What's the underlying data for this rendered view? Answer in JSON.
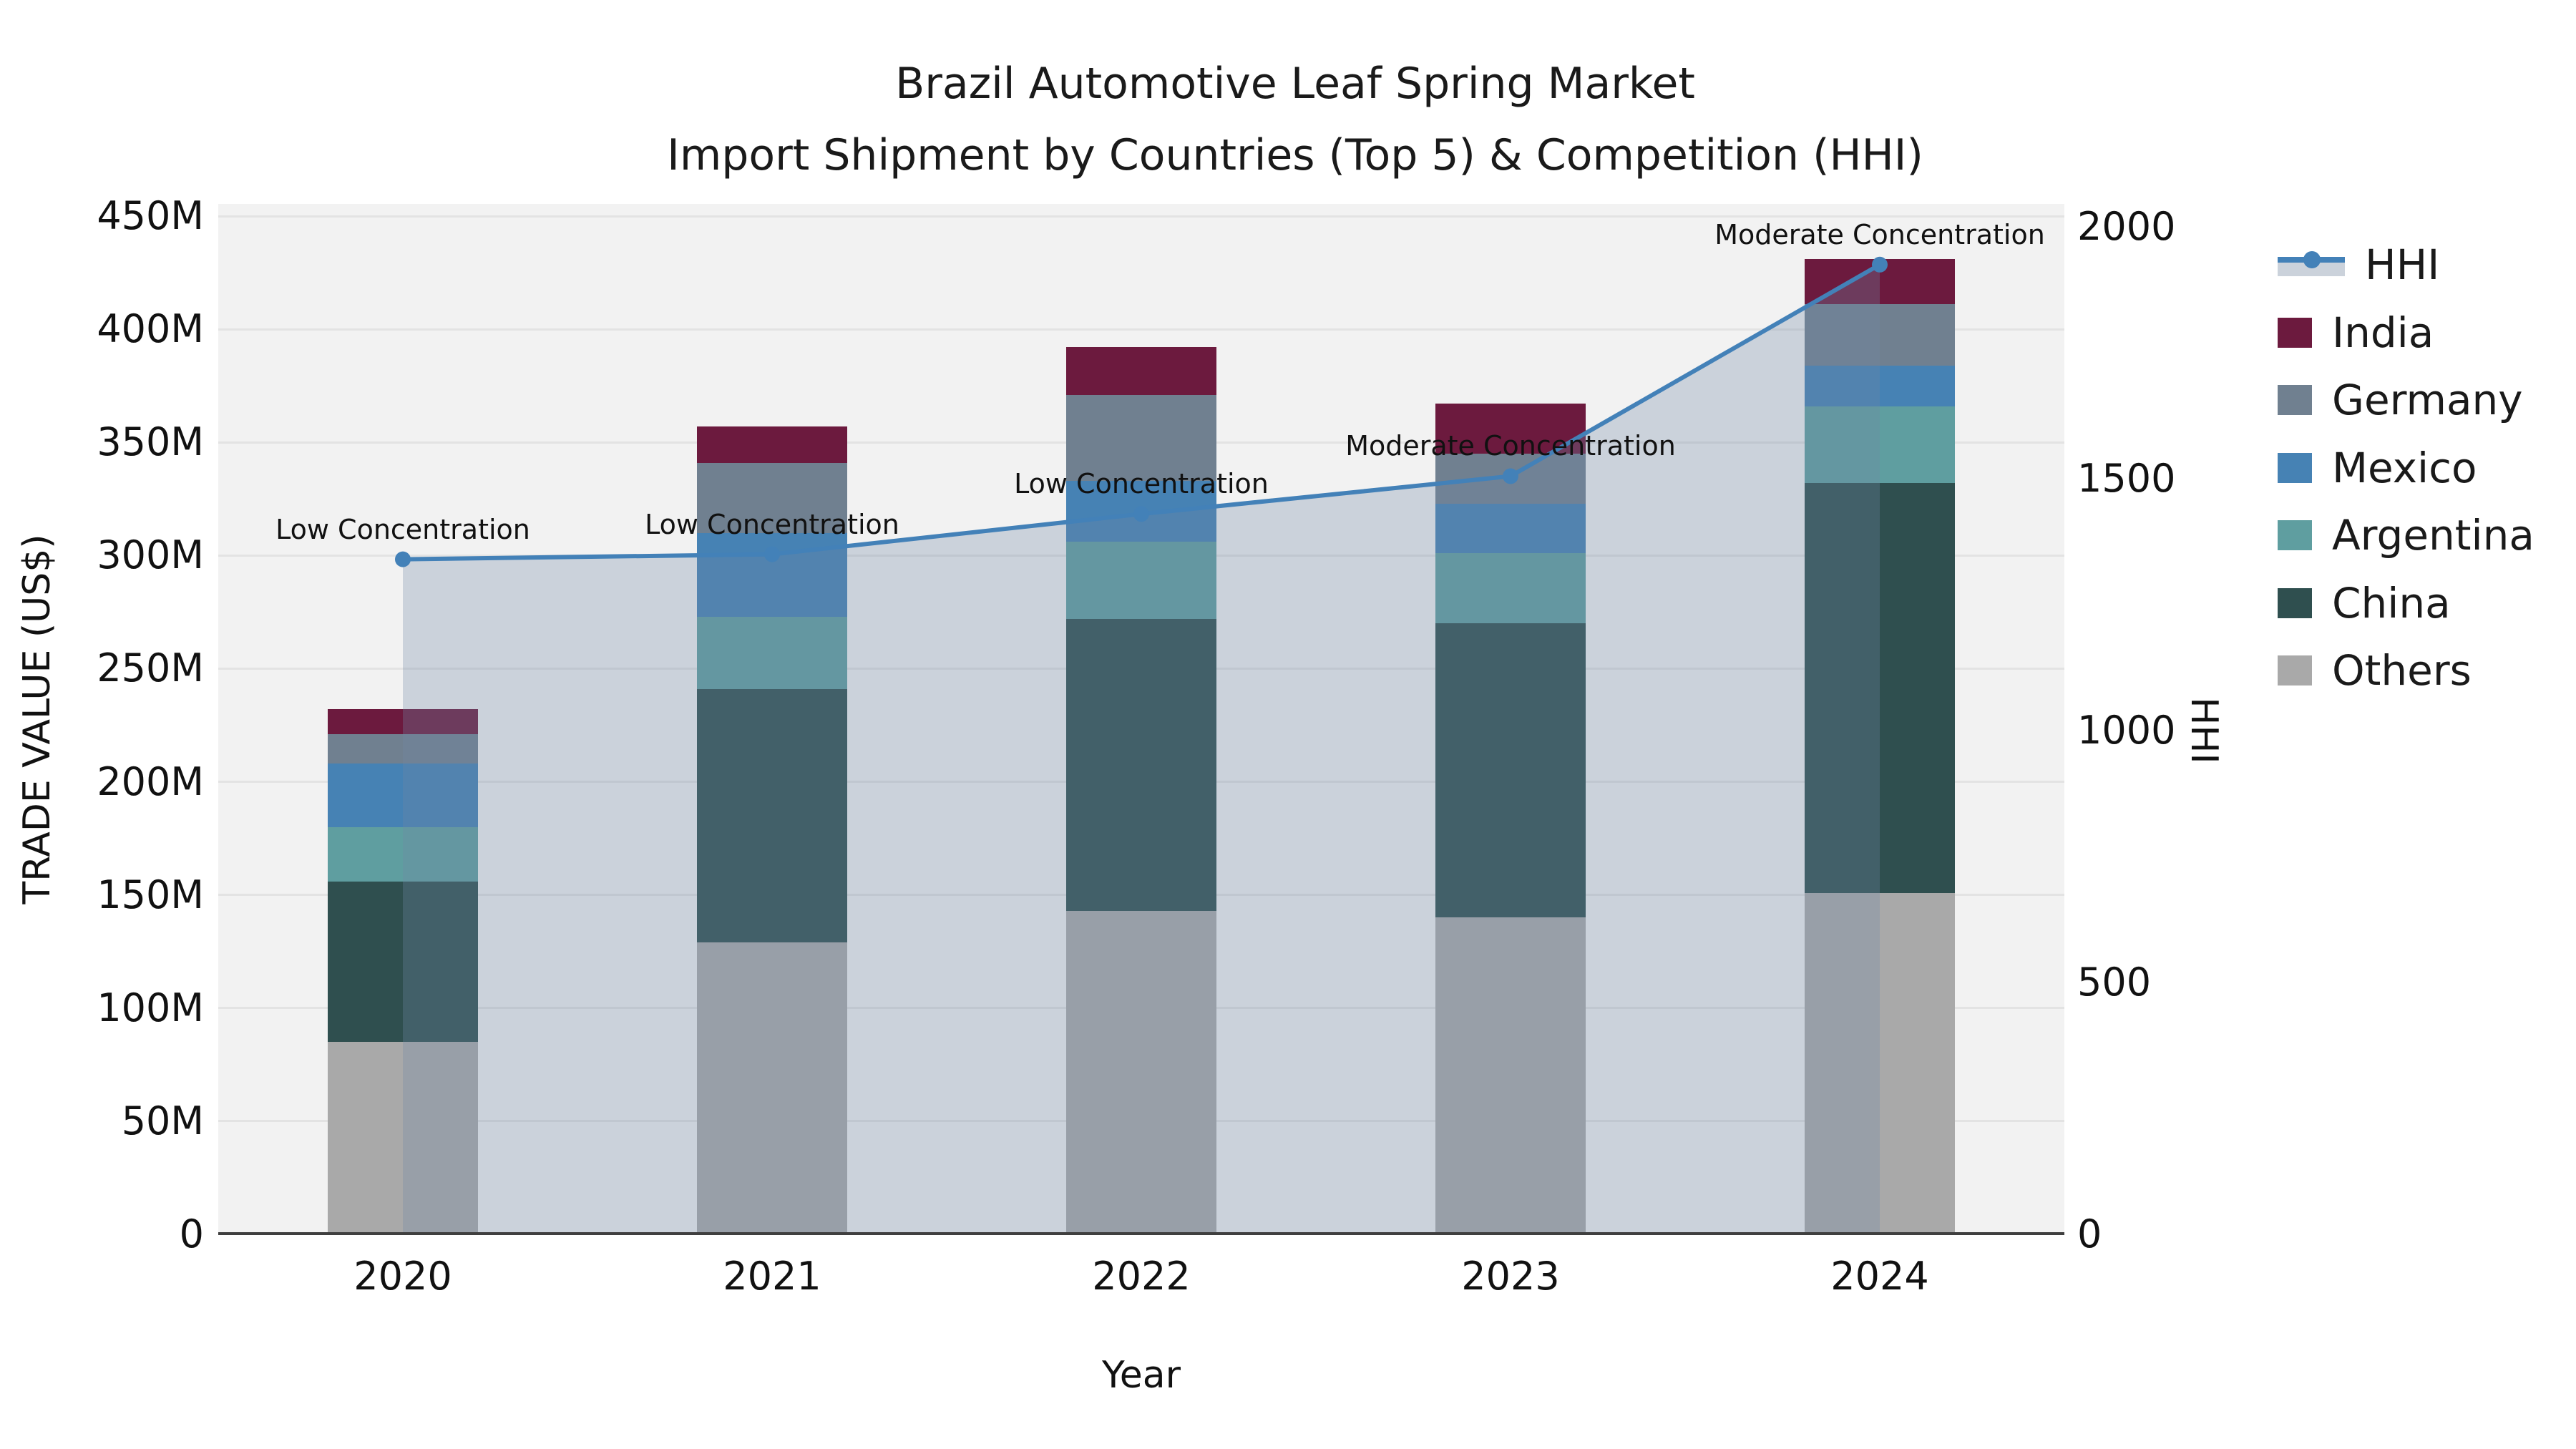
{
  "title": {
    "line1": "Brazil Automotive Leaf Spring Market",
    "line2": "Import Shipment by Countries (Top 5) & Competition (HHI)"
  },
  "axes": {
    "x_title": "Year",
    "y_left_title": "TRADE VALUE (US$)",
    "y_right_title": "HHI",
    "y_left_tick_labels": [
      "0",
      "50M",
      "100M",
      "150M",
      "200M",
      "250M",
      "300M",
      "350M",
      "400M",
      "450M"
    ],
    "y_left_tick_values": [
      0,
      50,
      100,
      150,
      200,
      250,
      300,
      350,
      400,
      450
    ],
    "y_right_tick_labels": [
      "0",
      "500",
      "1000",
      "1500",
      "2000"
    ],
    "y_right_tick_values": [
      0,
      500,
      1000,
      1500,
      2000
    ]
  },
  "chart_data": {
    "type": "bar",
    "subtype": "stacked-bar-with-line",
    "categories": [
      "2020",
      "2021",
      "2022",
      "2023",
      "2024"
    ],
    "value_unit": "million US$",
    "series": [
      {
        "name": "India",
        "color": "#6C1A3E",
        "values": [
          11,
          16,
          21,
          22,
          20
        ]
      },
      {
        "name": "Germany",
        "color": "#708090",
        "values": [
          13,
          31,
          38,
          22,
          27
        ]
      },
      {
        "name": "Mexico",
        "color": "#4682B4",
        "values": [
          28,
          37,
          27,
          22,
          18
        ]
      },
      {
        "name": "Argentina",
        "color": "#5F9EA0",
        "values": [
          24,
          32,
          34,
          31,
          34
        ]
      },
      {
        "name": "China",
        "color": "#2F4F4F",
        "values": [
          71,
          112,
          129,
          130,
          181
        ]
      },
      {
        "name": "Others",
        "color": "#A9A9A9",
        "values": [
          85,
          129,
          143,
          140,
          151
        ]
      }
    ],
    "bar_totals": [
      232,
      357,
      392,
      367,
      431
    ],
    "stack_order_bottom_to_top": [
      "Others",
      "China",
      "Argentina",
      "Mexico",
      "Germany",
      "India"
    ],
    "line_series": {
      "name": "HHI",
      "color": "#4381B8",
      "area_fill": "rgba(113,137,167,0.30)",
      "values": [
        1340,
        1350,
        1430,
        1505,
        1925
      ]
    },
    "annotations": [
      {
        "x": "2020",
        "text": "Low Concentration"
      },
      {
        "x": "2021",
        "text": "Low Concentration"
      },
      {
        "x": "2022",
        "text": "Low Concentration"
      },
      {
        "x": "2023",
        "text": "Moderate Concentration"
      },
      {
        "x": "2024",
        "text": "Moderate Concentration"
      }
    ],
    "ylim_left": [
      0,
      455
    ],
    "ylim_right": [
      0,
      2000
    ],
    "grid": true,
    "legend_position": "right"
  },
  "legend": {
    "items": [
      {
        "label": "HHI",
        "type": "line",
        "color": "#4381B8"
      },
      {
        "label": "India",
        "type": "swatch",
        "color": "#6C1A3E"
      },
      {
        "label": "Germany",
        "type": "swatch",
        "color": "#708090"
      },
      {
        "label": "Mexico",
        "type": "swatch",
        "color": "#4682B4"
      },
      {
        "label": "Argentina",
        "type": "swatch",
        "color": "#5F9EA0"
      },
      {
        "label": "China",
        "type": "swatch",
        "color": "#2F4F4F"
      },
      {
        "label": "Others",
        "type": "swatch",
        "color": "#A9A9A9"
      }
    ]
  },
  "colors": {
    "figure_bg": "#ffffff",
    "plot_bg": "#f2f2f2",
    "gridline": "#e3e3e3",
    "axis_line": "#3f3f3f",
    "text": "#1a1a1a"
  }
}
